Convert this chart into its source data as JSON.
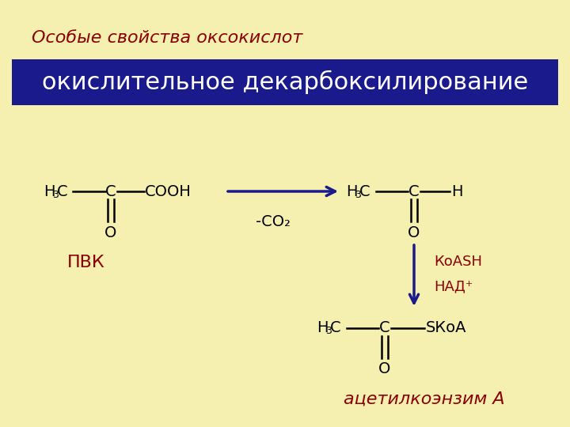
{
  "title": "Особые свойства оксокислот",
  "subtitle": "окислительное декарбоксилирование",
  "background_color": "#f5f0b0",
  "title_color": "#8b0000",
  "subtitle_bg": "#1a1a8c",
  "subtitle_color": "#ffffff",
  "label_pvk": "ПВК",
  "label_co2": "-CO₂",
  "label_koash": "КоАSН",
  "label_nad": "НАД⁺",
  "label_acetyl": "ацетилкоэнзим А",
  "line_color": "#000000",
  "arrow_color": "#1a1a8c",
  "red_color": "#8b0000"
}
